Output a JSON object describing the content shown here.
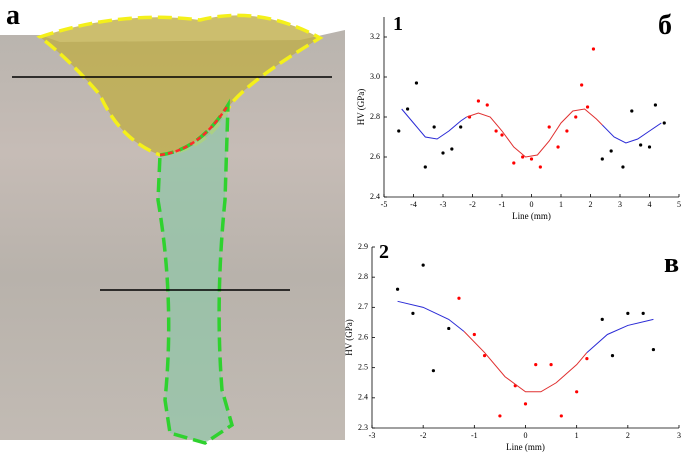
{
  "figure": {
    "labels": [
      "а",
      "б",
      "в"
    ]
  },
  "chart_data": [
    {
      "type": "scatter",
      "title": "1",
      "x_label": "Line (mm)",
      "y_label": "HV (GPa)",
      "xlim": [
        -5,
        5
      ],
      "xticks": [
        -5,
        -4,
        -3,
        -2,
        -1,
        0,
        1,
        2,
        3,
        4,
        5
      ],
      "ylim": [
        2.4,
        3.3
      ],
      "yticks": [
        2.4,
        2.6,
        2.8,
        {
          "value": 3,
          "label": "3.0"
        },
        3.2
      ],
      "series": [
        {
          "color": "#000000",
          "mode": "markers",
          "x": [
            -4.5,
            -4.2,
            -3.9,
            -3.6,
            -3.3,
            -3,
            -2.7,
            -2.4,
            2.4,
            2.7,
            3.1,
            3.4,
            3.7,
            4,
            4.2,
            4.5
          ],
          "values": [
            2.73,
            2.84,
            2.97,
            2.55,
            2.75,
            2.62,
            2.64,
            2.75,
            2.59,
            2.63,
            2.55,
            2.83,
            2.66,
            2.65,
            2.86,
            2.77
          ]
        },
        {
          "color": "#ff0000",
          "mode": "markers",
          "x": [
            -2.1,
            -1.8,
            -1.5,
            -1.2,
            -1,
            -0.6,
            -0.3,
            0,
            0.3,
            0.6,
            0.9,
            1.2,
            1.5,
            1.7,
            1.9,
            2.1
          ],
          "values": [
            2.8,
            2.88,
            2.86,
            2.73,
            2.71,
            2.57,
            2.6,
            2.59,
            2.55,
            2.75,
            2.65,
            2.73,
            2.8,
            2.96,
            2.85,
            3.14
          ]
        },
        {
          "color": "#2b2bd6",
          "mode": "line",
          "x": [
            -4.4,
            -4,
            -3.6,
            -3.2,
            -2.8,
            -2.4,
            -2.2
          ],
          "values": [
            2.84,
            2.77,
            2.7,
            2.69,
            2.73,
            2.78,
            2.8
          ]
        },
        {
          "color": "#e03030",
          "mode": "line",
          "x": [
            -2.2,
            -1.8,
            -1.4,
            -1,
            -0.6,
            -0.2,
            0.2,
            0.6,
            1,
            1.4,
            1.8,
            2.2,
            2.4
          ],
          "values": [
            2.8,
            2.82,
            2.8,
            2.73,
            2.65,
            2.6,
            2.61,
            2.68,
            2.77,
            2.83,
            2.84,
            2.79,
            2.76
          ]
        },
        {
          "color": "#2b2bd6",
          "mode": "line",
          "x": [
            2.4,
            2.8,
            3.2,
            3.6,
            4,
            4.4
          ],
          "values": [
            2.76,
            2.7,
            2.67,
            2.69,
            2.73,
            2.77
          ]
        }
      ]
    },
    {
      "type": "scatter",
      "title": "2",
      "x_label": "Line (mm)",
      "y_label": "HV (GPa)",
      "xlim": [
        -3,
        3
      ],
      "xticks": [
        -3,
        -2,
        -1,
        0,
        1,
        2,
        3
      ],
      "ylim": [
        2.3,
        2.9
      ],
      "yticks": [
        2.3,
        2.4,
        2.5,
        2.6,
        2.7,
        2.8,
        2.9
      ],
      "series": [
        {
          "color": "#000000",
          "mode": "markers",
          "x": [
            -2.5,
            -2.2,
            -2,
            -1.8,
            -1.5,
            1.5,
            1.7,
            2,
            2.3,
            2.5
          ],
          "values": [
            2.76,
            2.68,
            2.84,
            2.49,
            2.63,
            2.66,
            2.54,
            2.68,
            2.68,
            2.56
          ]
        },
        {
          "color": "#ff0000",
          "mode": "markers",
          "x": [
            -1.3,
            -1,
            -0.8,
            -0.5,
            -0.2,
            0,
            0.2,
            0.5,
            0.7,
            1,
            1.2
          ],
          "values": [
            2.73,
            2.61,
            2.54,
            2.34,
            2.44,
            2.38,
            2.51,
            2.51,
            2.34,
            2.42,
            2.53
          ]
        },
        {
          "color": "#2b2bd6",
          "mode": "line",
          "x": [
            -2.5,
            -2,
            -1.5,
            -1.2
          ],
          "values": [
            2.72,
            2.7,
            2.66,
            2.62
          ]
        },
        {
          "color": "#e03030",
          "mode": "line",
          "x": [
            -1.2,
            -0.8,
            -0.4,
            0,
            0.3,
            0.6,
            1,
            1.2
          ],
          "values": [
            2.62,
            2.55,
            2.47,
            2.42,
            2.42,
            2.45,
            2.51,
            2.55
          ]
        },
        {
          "color": "#2b2bd6",
          "mode": "line",
          "x": [
            1.2,
            1.6,
            2,
            2.5
          ],
          "values": [
            2.55,
            2.61,
            2.64,
            2.66
          ]
        }
      ]
    }
  ]
}
